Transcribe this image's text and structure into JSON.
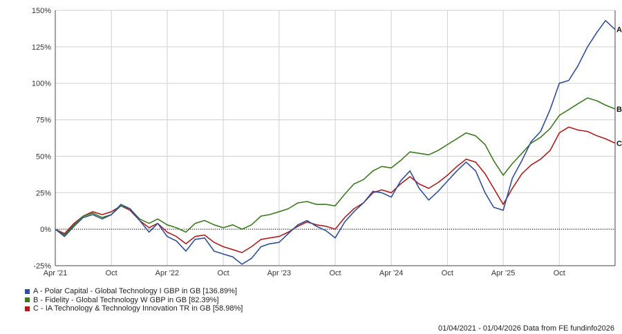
{
  "chart_data": {
    "type": "line",
    "title": "",
    "xlabel": "",
    "ylabel": "",
    "x_tick_labels": [
      "Apr '21",
      "Oct",
      "Apr '22",
      "Oct",
      "Apr '23",
      "Oct",
      "Apr '24",
      "Oct",
      "Apr '25",
      "Oct"
    ],
    "x_ticks": [
      "2021-04-01",
      "2021-10-01",
      "2022-04-01",
      "2022-10-01",
      "2023-04-01",
      "2023-10-01",
      "2024-04-01",
      "2024-10-01",
      "2025-04-01",
      "2025-10-01"
    ],
    "xlim": [
      "2021-04-01",
      "2026-04-01"
    ],
    "ylim": [
      -25,
      150
    ],
    "y_ticks": [
      -25,
      0,
      25,
      50,
      75,
      100,
      125,
      150
    ],
    "y_tick_labels": [
      "-25%",
      "0%",
      "25%",
      "50%",
      "75%",
      "100%",
      "125%",
      "150%"
    ],
    "grid": true,
    "zero_line": "dotted",
    "series": [
      {
        "name": "A - Polar Capital - Global Technology I GBP in GB [136.89%]",
        "end_label": "A",
        "color": "#2e4e9e",
        "points": [
          [
            "2021-04-01",
            0
          ],
          [
            "2021-05-01",
            -5
          ],
          [
            "2021-06-01",
            2
          ],
          [
            "2021-07-01",
            8
          ],
          [
            "2021-08-01",
            10
          ],
          [
            "2021-09-01",
            7
          ],
          [
            "2021-10-01",
            10
          ],
          [
            "2021-11-01",
            17
          ],
          [
            "2021-12-01",
            14
          ],
          [
            "2022-01-01",
            6
          ],
          [
            "2022-02-01",
            -2
          ],
          [
            "2022-03-01",
            4
          ],
          [
            "2022-04-01",
            -5
          ],
          [
            "2022-05-01",
            -8
          ],
          [
            "2022-06-01",
            -15
          ],
          [
            "2022-07-01",
            -7
          ],
          [
            "2022-08-01",
            -6
          ],
          [
            "2022-09-01",
            -15
          ],
          [
            "2022-10-01",
            -17
          ],
          [
            "2022-11-01",
            -19
          ],
          [
            "2022-12-01",
            -24
          ],
          [
            "2023-01-01",
            -20
          ],
          [
            "2023-02-01",
            -12
          ],
          [
            "2023-03-01",
            -10
          ],
          [
            "2023-04-01",
            -9
          ],
          [
            "2023-05-01",
            -3
          ],
          [
            "2023-06-01",
            3
          ],
          [
            "2023-07-01",
            6
          ],
          [
            "2023-08-01",
            2
          ],
          [
            "2023-09-01",
            -1
          ],
          [
            "2023-10-01",
            -6
          ],
          [
            "2023-11-01",
            5
          ],
          [
            "2023-12-01",
            12
          ],
          [
            "2024-01-01",
            18
          ],
          [
            "2024-02-01",
            26
          ],
          [
            "2024-03-01",
            25
          ],
          [
            "2024-04-01",
            22
          ],
          [
            "2024-05-01",
            33
          ],
          [
            "2024-06-01",
            40
          ],
          [
            "2024-07-01",
            28
          ],
          [
            "2024-08-01",
            20
          ],
          [
            "2024-09-01",
            26
          ],
          [
            "2024-10-01",
            33
          ],
          [
            "2024-11-01",
            40
          ],
          [
            "2024-12-01",
            46
          ],
          [
            "2025-01-01",
            40
          ],
          [
            "2025-02-01",
            25
          ],
          [
            "2025-03-01",
            15
          ],
          [
            "2025-04-01",
            13
          ],
          [
            "2025-05-01",
            35
          ],
          [
            "2025-06-01",
            47
          ],
          [
            "2025-07-01",
            60
          ],
          [
            "2025-08-01",
            67
          ],
          [
            "2025-09-01",
            82
          ],
          [
            "2025-10-01",
            100
          ],
          [
            "2025-11-01",
            102
          ],
          [
            "2025-12-01",
            112
          ],
          [
            "2026-01-01",
            125
          ],
          [
            "2026-02-01",
            135
          ],
          [
            "2026-03-01",
            143
          ],
          [
            "2026-04-01",
            136.89
          ]
        ]
      },
      {
        "name": "B - Fidelity - Global Technology W GBP in GB [82.39%]",
        "end_label": "B",
        "color": "#3c7a1e",
        "points": [
          [
            "2021-04-01",
            0
          ],
          [
            "2021-05-01",
            -4
          ],
          [
            "2021-06-01",
            3
          ],
          [
            "2021-07-01",
            9
          ],
          [
            "2021-08-01",
            11
          ],
          [
            "2021-09-01",
            8
          ],
          [
            "2021-10-01",
            10
          ],
          [
            "2021-11-01",
            16
          ],
          [
            "2021-12-01",
            14
          ],
          [
            "2022-01-01",
            7
          ],
          [
            "2022-02-01",
            4
          ],
          [
            "2022-03-01",
            7
          ],
          [
            "2022-04-01",
            3
          ],
          [
            "2022-05-01",
            1
          ],
          [
            "2022-06-01",
            -2
          ],
          [
            "2022-07-01",
            4
          ],
          [
            "2022-08-01",
            6
          ],
          [
            "2022-09-01",
            3
          ],
          [
            "2022-10-01",
            1
          ],
          [
            "2022-11-01",
            3
          ],
          [
            "2022-12-01",
            0
          ],
          [
            "2023-01-01",
            3
          ],
          [
            "2023-02-01",
            9
          ],
          [
            "2023-03-01",
            10
          ],
          [
            "2023-04-01",
            12
          ],
          [
            "2023-05-01",
            14
          ],
          [
            "2023-06-01",
            18
          ],
          [
            "2023-07-01",
            19
          ],
          [
            "2023-08-01",
            17
          ],
          [
            "2023-09-01",
            17
          ],
          [
            "2023-10-01",
            16
          ],
          [
            "2023-11-01",
            24
          ],
          [
            "2023-12-01",
            31
          ],
          [
            "2024-01-01",
            34
          ],
          [
            "2024-02-01",
            40
          ],
          [
            "2024-03-01",
            43
          ],
          [
            "2024-04-01",
            42
          ],
          [
            "2024-05-01",
            47
          ],
          [
            "2024-06-01",
            53
          ],
          [
            "2024-07-01",
            52
          ],
          [
            "2024-08-01",
            51
          ],
          [
            "2024-09-01",
            54
          ],
          [
            "2024-10-01",
            58
          ],
          [
            "2024-11-01",
            62
          ],
          [
            "2024-12-01",
            66
          ],
          [
            "2025-01-01",
            64
          ],
          [
            "2025-02-01",
            58
          ],
          [
            "2025-03-01",
            47
          ],
          [
            "2025-04-01",
            37
          ],
          [
            "2025-05-01",
            45
          ],
          [
            "2025-06-01",
            52
          ],
          [
            "2025-07-01",
            59
          ],
          [
            "2025-08-01",
            63
          ],
          [
            "2025-09-01",
            69
          ],
          [
            "2025-10-01",
            78
          ],
          [
            "2025-11-01",
            82
          ],
          [
            "2025-12-01",
            86
          ],
          [
            "2026-01-01",
            90
          ],
          [
            "2026-02-01",
            88
          ],
          [
            "2026-03-01",
            85
          ],
          [
            "2026-04-01",
            82.39
          ]
        ]
      },
      {
        "name": "C - IA Technology & Technology Innovation TR in GB [58.98%]",
        "end_label": "C",
        "color": "#b01c1c",
        "points": [
          [
            "2021-04-01",
            0
          ],
          [
            "2021-05-01",
            -3
          ],
          [
            "2021-06-01",
            4
          ],
          [
            "2021-07-01",
            9
          ],
          [
            "2021-08-01",
            12
          ],
          [
            "2021-09-01",
            10
          ],
          [
            "2021-10-01",
            12
          ],
          [
            "2021-11-01",
            16
          ],
          [
            "2021-12-01",
            13
          ],
          [
            "2022-01-01",
            6
          ],
          [
            "2022-02-01",
            1
          ],
          [
            "2022-03-01",
            4
          ],
          [
            "2022-04-01",
            -2
          ],
          [
            "2022-05-01",
            -5
          ],
          [
            "2022-06-01",
            -10
          ],
          [
            "2022-07-01",
            -5
          ],
          [
            "2022-08-01",
            -4
          ],
          [
            "2022-09-01",
            -9
          ],
          [
            "2022-10-01",
            -12
          ],
          [
            "2022-11-01",
            -14
          ],
          [
            "2022-12-01",
            -16
          ],
          [
            "2023-01-01",
            -12
          ],
          [
            "2023-02-01",
            -7
          ],
          [
            "2023-03-01",
            -6
          ],
          [
            "2023-04-01",
            -5
          ],
          [
            "2023-05-01",
            -2
          ],
          [
            "2023-06-01",
            2
          ],
          [
            "2023-07-01",
            5
          ],
          [
            "2023-08-01",
            3
          ],
          [
            "2023-09-01",
            2
          ],
          [
            "2023-10-01",
            0
          ],
          [
            "2023-11-01",
            8
          ],
          [
            "2023-12-01",
            14
          ],
          [
            "2024-01-01",
            18
          ],
          [
            "2024-02-01",
            25
          ],
          [
            "2024-03-01",
            27
          ],
          [
            "2024-04-01",
            25
          ],
          [
            "2024-05-01",
            31
          ],
          [
            "2024-06-01",
            36
          ],
          [
            "2024-07-01",
            31
          ],
          [
            "2024-08-01",
            28
          ],
          [
            "2024-09-01",
            32
          ],
          [
            "2024-10-01",
            37
          ],
          [
            "2024-11-01",
            43
          ],
          [
            "2024-12-01",
            48
          ],
          [
            "2025-01-01",
            46
          ],
          [
            "2025-02-01",
            38
          ],
          [
            "2025-03-01",
            28
          ],
          [
            "2025-04-01",
            17
          ],
          [
            "2025-05-01",
            28
          ],
          [
            "2025-06-01",
            38
          ],
          [
            "2025-07-01",
            44
          ],
          [
            "2025-08-01",
            48
          ],
          [
            "2025-09-01",
            54
          ],
          [
            "2025-10-01",
            66
          ],
          [
            "2025-11-01",
            70
          ],
          [
            "2025-12-01",
            68
          ],
          [
            "2026-01-01",
            67
          ],
          [
            "2026-02-01",
            64
          ],
          [
            "2026-03-01",
            62
          ],
          [
            "2026-04-01",
            58.98
          ]
        ]
      }
    ]
  },
  "legend": {
    "items": [
      {
        "label": "A - Polar Capital - Global Technology I GBP in GB [136.89%]",
        "color": "#2e4e9e"
      },
      {
        "label": "B - Fidelity - Global Technology W GBP in GB [82.39%]",
        "color": "#3c7a1e"
      },
      {
        "label": "C - IA Technology & Technology Innovation TR in GB [58.98%]",
        "color": "#b01c1c"
      }
    ]
  },
  "footer": {
    "text": "01/04/2021 - 01/04/2026 Data from FE fundinfo2026"
  }
}
